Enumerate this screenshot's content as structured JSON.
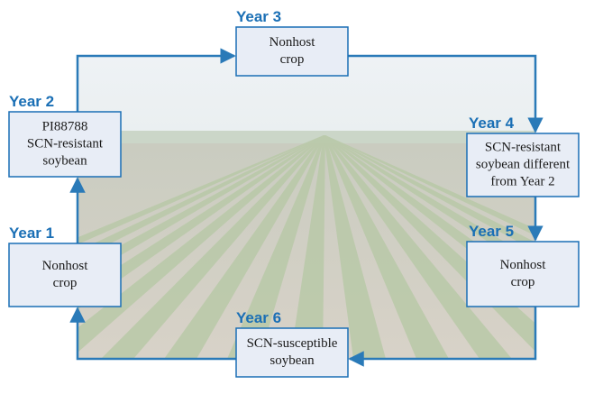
{
  "steps": [
    {
      "year": "Year 1",
      "lines": [
        "Nonhost",
        "crop"
      ]
    },
    {
      "year": "Year 2",
      "lines": [
        "PI88788",
        "SCN-resistant",
        "soybean"
      ]
    },
    {
      "year": "Year 3",
      "lines": [
        "Nonhost",
        "crop"
      ]
    },
    {
      "year": "Year 4",
      "lines": [
        "SCN-resistant",
        "soybean different",
        "from Year 2"
      ]
    },
    {
      "year": "Year 5",
      "lines": [
        "Nonhost",
        "crop"
      ]
    },
    {
      "year": "Year 6",
      "lines": [
        "SCN-susceptible",
        "soybean"
      ]
    }
  ]
}
